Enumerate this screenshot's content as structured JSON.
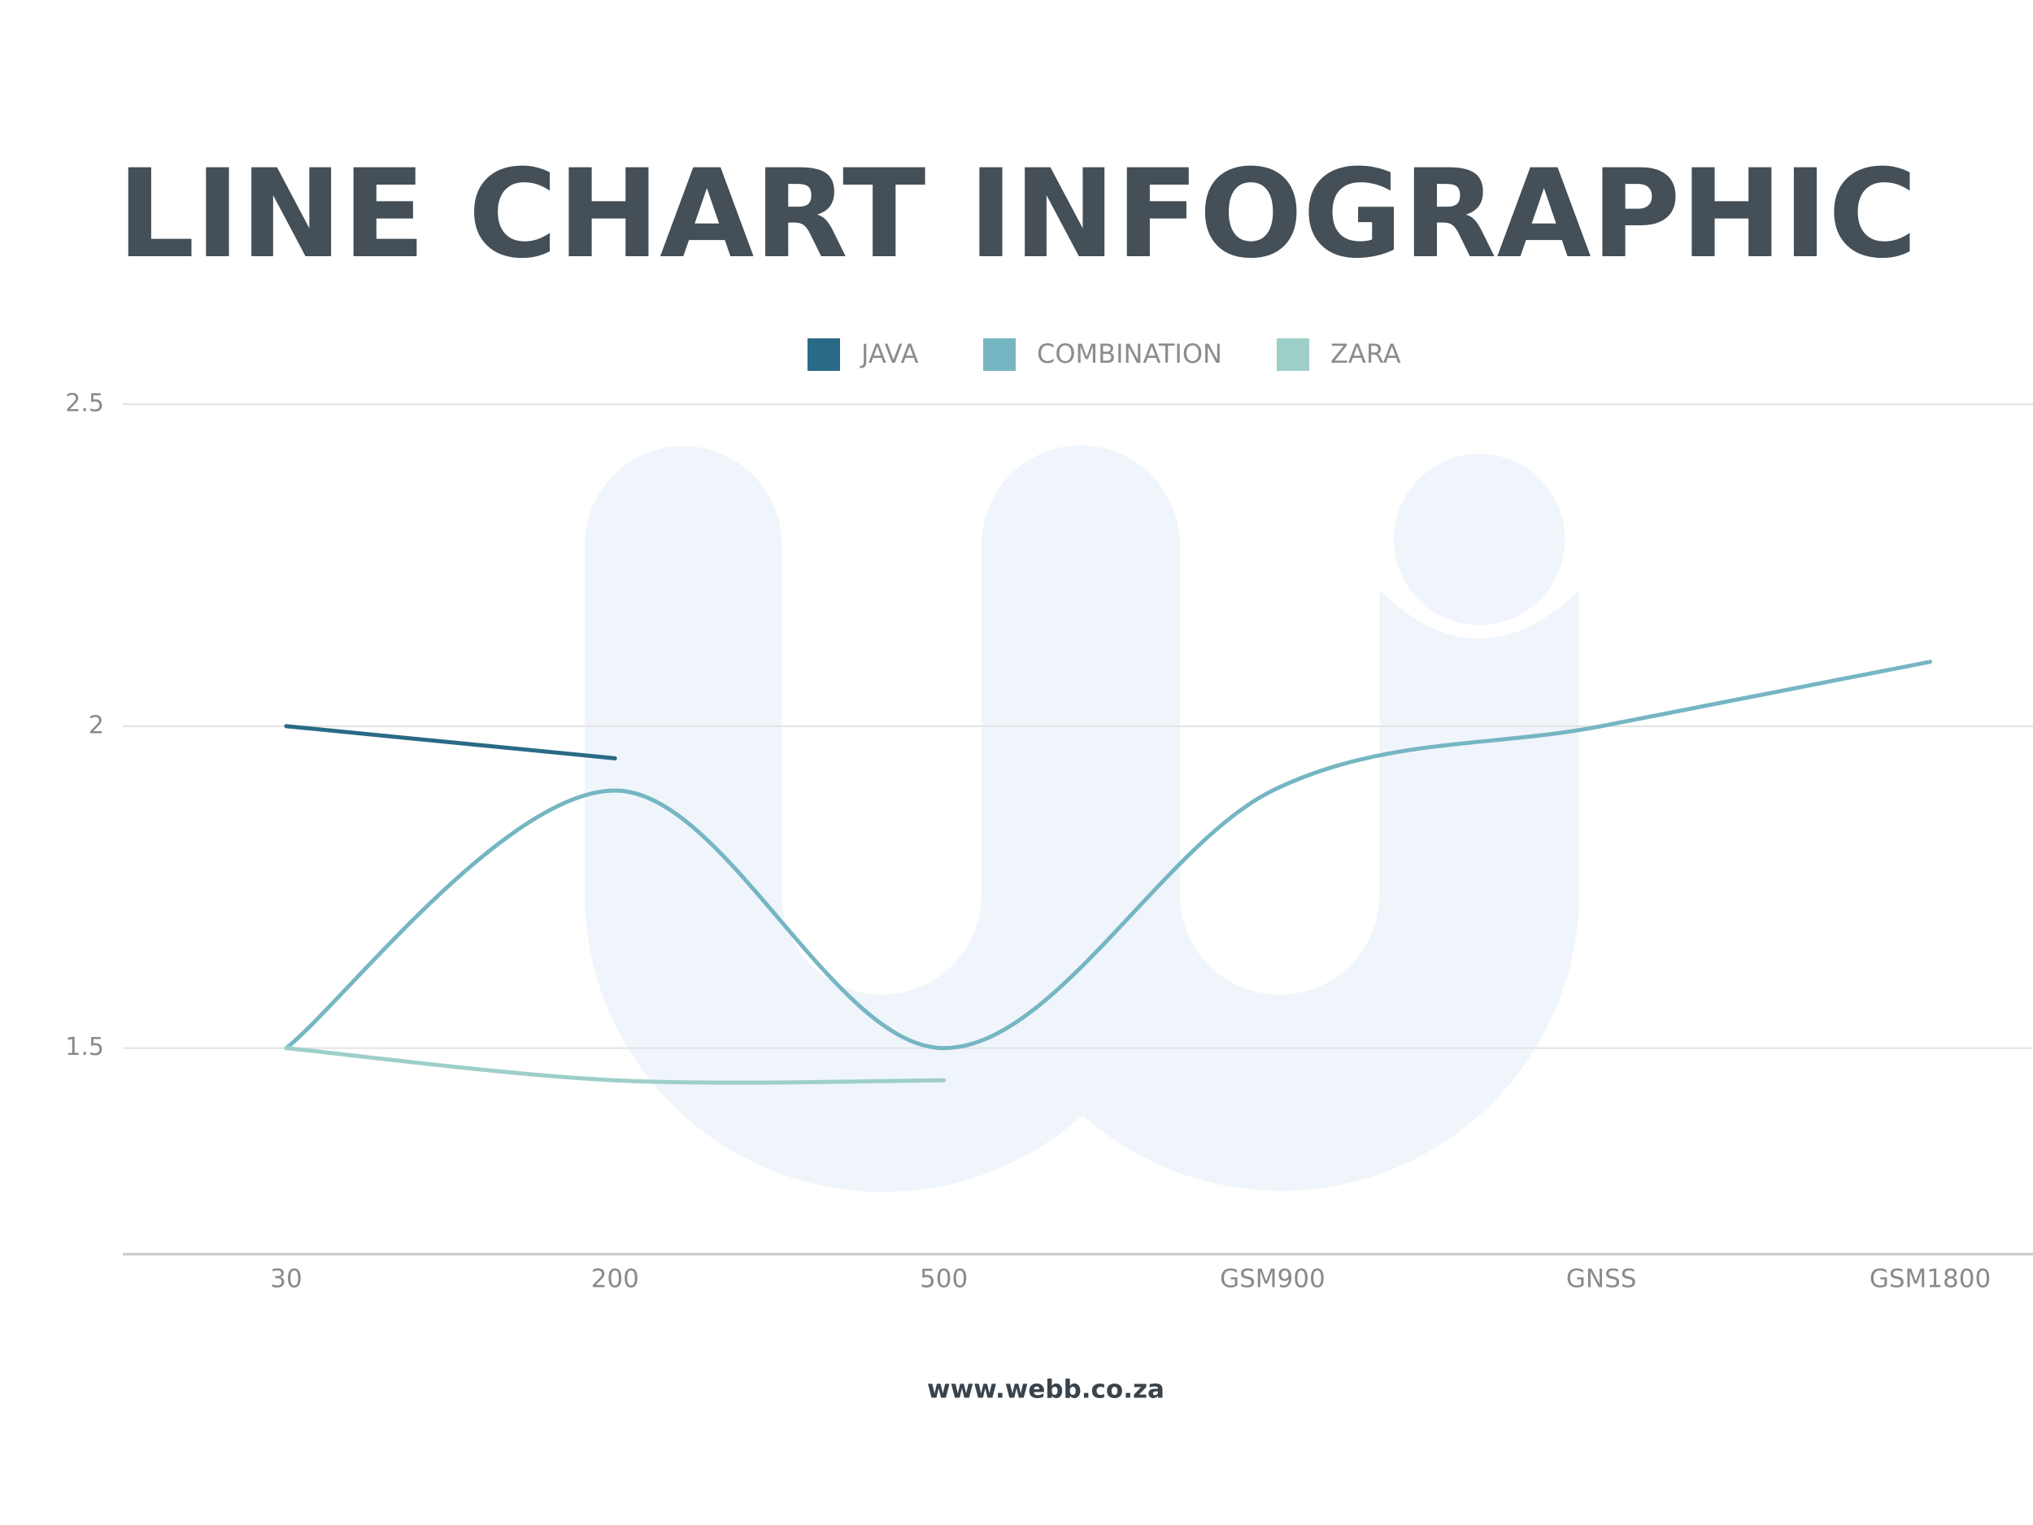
{
  "chart_data": {
    "type": "line",
    "title": "LINE CHART INFOGRAPHIC",
    "footer": "www.webb.co.za",
    "categories": [
      "30",
      "200",
      "500",
      "GSM900",
      "GNSS",
      "GSM1800"
    ],
    "series": [
      {
        "name": "JAVA",
        "color": "#2a6a86",
        "values": [
          2.0,
          1.95,
          null,
          null,
          null,
          null
        ]
      },
      {
        "name": "COMBINATION",
        "color": "#76b6c3",
        "values": [
          1.5,
          1.9,
          1.5,
          1.9,
          2.0,
          2.1
        ]
      },
      {
        "name": "ZARA",
        "color": "#9dcfc8",
        "values": [
          1.5,
          1.45,
          1.45,
          null,
          null,
          null
        ]
      }
    ],
    "ylim": [
      1.18,
      2.5
    ],
    "yticks": [
      1.5,
      2.0,
      2.5
    ],
    "grid": true,
    "legend": "top",
    "smooth": true
  }
}
